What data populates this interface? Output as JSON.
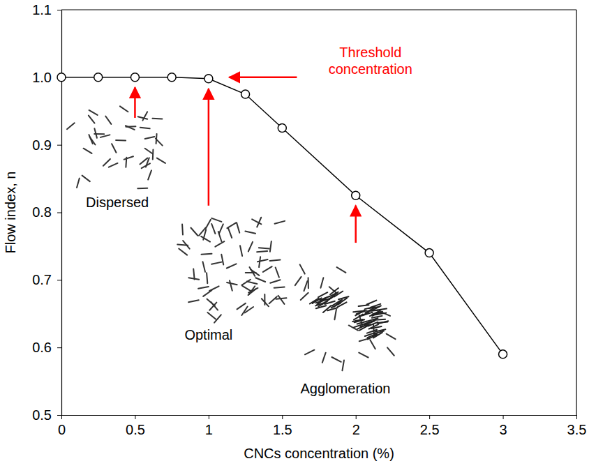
{
  "chart_data": {
    "type": "line",
    "x_label": "CNCs concentration (%)",
    "y_label": "Flow index, n",
    "x": [
      0,
      0.25,
      0.5,
      0.75,
      1,
      1.25,
      1.5,
      2,
      2.5,
      3
    ],
    "values": [
      1.0,
      1.0,
      1.0,
      1.0,
      0.998,
      0.975,
      0.925,
      0.825,
      0.74,
      0.59
    ],
    "color": "#000000",
    "marker": "circle",
    "xlim": [
      0,
      3.5
    ],
    "xticks": [
      0,
      0.5,
      1,
      1.5,
      2,
      2.5,
      3,
      3.5
    ],
    "ylim": [
      0.5,
      1.1
    ],
    "yticks": [
      0.5,
      0.6,
      0.7,
      0.8,
      0.9,
      {
        "value": 1,
        "label": "1.0"
      },
      1.1
    ],
    "grid": false,
    "annotations": [
      "Threshold concentration",
      "Dispersed",
      "Optimal",
      "Agglomeration"
    ]
  }
}
